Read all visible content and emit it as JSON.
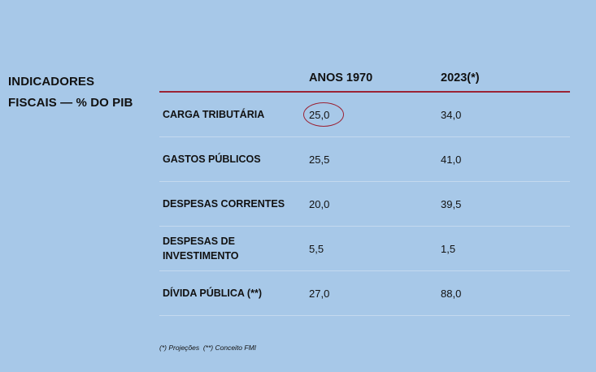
{
  "title": {
    "line1": "INDICADORES",
    "line2": "FISCAIS — % DO PIB"
  },
  "table": {
    "headers": [
      "",
      "ANOS 1970",
      "2023(*)"
    ],
    "rows": [
      {
        "label": "CARGA TRIBUTÁRIA",
        "col1": "25,0",
        "col2": "34,0",
        "highlighted": true
      },
      {
        "label": "GASTOS PÚBLICOS",
        "col1": "25,5",
        "col2": "41,0"
      },
      {
        "label": "DESPESAS CORRENTES",
        "col1": "20,0",
        "col2": "39,5"
      },
      {
        "label": "DESPESAS DE INVESTIMENTO",
        "col1": "5,5",
        "col2": "1,5"
      },
      {
        "label": "DÍVIDA PÚBLICA (**)",
        "col1": "27,0",
        "col2": "88,0"
      }
    ]
  },
  "footnote": "(*) Projeções  (**) Conceito FMI",
  "colors": {
    "background": "#a7c8e8",
    "accent": "#9b2335"
  }
}
